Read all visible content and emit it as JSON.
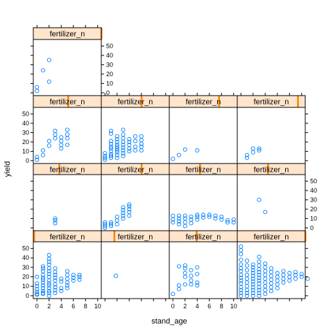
{
  "colors": {
    "strip_bg": "#ffe5cc",
    "strip_indicator": "#ff8000",
    "point": "#0080ff",
    "border": "#000000"
  },
  "chart_data": {
    "type": "scatter",
    "layout": "lattice trellis, conditioned by shingle fertilizer_n, 4 columns x 4 rows, filled from bottom-left",
    "title": "",
    "xlabel": "stand_age",
    "ylabel": "yield",
    "xlim": [
      -0.6,
      10.6
    ],
    "ylim": [
      -3,
      57
    ],
    "x_ticks": [
      0,
      2,
      4,
      6,
      8,
      10
    ],
    "y_ticks": [
      0,
      10,
      20,
      30,
      40,
      50
    ],
    "panels": [
      {
        "name": "panel-1",
        "strip_label": "fertilizer_n",
        "indicator": [
          0.0,
          0.015
        ],
        "points": [
          [
            0,
            1
          ],
          [
            0,
            2
          ],
          [
            0,
            4
          ],
          [
            0,
            7
          ],
          [
            0,
            10
          ],
          [
            0,
            13
          ],
          [
            0,
            20
          ],
          [
            1,
            2
          ],
          [
            1,
            3
          ],
          [
            1,
            5
          ],
          [
            1,
            8
          ],
          [
            1,
            11
          ],
          [
            1,
            14
          ],
          [
            1,
            17
          ],
          [
            1,
            19
          ],
          [
            1,
            22
          ],
          [
            1,
            26
          ],
          [
            1,
            29
          ],
          [
            1,
            31
          ],
          [
            2,
            0
          ],
          [
            2,
            3
          ],
          [
            2,
            5
          ],
          [
            2,
            8
          ],
          [
            2,
            11
          ],
          [
            2,
            13
          ],
          [
            2,
            16
          ],
          [
            2,
            20
          ],
          [
            2,
            23
          ],
          [
            2,
            26
          ],
          [
            2,
            29
          ],
          [
            2,
            33
          ],
          [
            2,
            36
          ],
          [
            2,
            39
          ],
          [
            2,
            43
          ],
          [
            3,
            3
          ],
          [
            3,
            6
          ],
          [
            3,
            9
          ],
          [
            3,
            12
          ],
          [
            3,
            16
          ],
          [
            3,
            19
          ],
          [
            3,
            22
          ],
          [
            3,
            25
          ],
          [
            3,
            29
          ],
          [
            4,
            5
          ],
          [
            4,
            8
          ],
          [
            4,
            15
          ],
          [
            4,
            18
          ],
          [
            5,
            8
          ],
          [
            5,
            11
          ],
          [
            5,
            14
          ],
          [
            5,
            18
          ],
          [
            5,
            22
          ],
          [
            5,
            26
          ],
          [
            6,
            16
          ],
          [
            6,
            19
          ],
          [
            6,
            22
          ],
          [
            7,
            17
          ],
          [
            7,
            20
          ],
          [
            7,
            22
          ]
        ]
      },
      {
        "name": "panel-2",
        "strip_label": "fertilizer_n",
        "indicator": [
          0.18,
          0.195
        ],
        "points": [
          [
            1.8,
            21
          ]
        ]
      },
      {
        "name": "panel-3",
        "strip_label": "fertilizer_n",
        "indicator": [
          0.39,
          0.405
        ],
        "points": [
          [
            0,
            2
          ],
          [
            1,
            7
          ],
          [
            1,
            11
          ],
          [
            1,
            31
          ],
          [
            2,
            12
          ],
          [
            2,
            20
          ],
          [
            2,
            24
          ],
          [
            2,
            29
          ],
          [
            2,
            32
          ],
          [
            3,
            12
          ],
          [
            3,
            16
          ],
          [
            3,
            21
          ],
          [
            3,
            27
          ],
          [
            4,
            11
          ],
          [
            4,
            14
          ],
          [
            4,
            23
          ],
          [
            4,
            30
          ]
        ]
      },
      {
        "name": "panel-4",
        "strip_label": "fertilizer_n",
        "indicator": [
          0.99,
          1.0
        ],
        "points": [
          [
            0,
            0
          ],
          [
            0,
            3
          ],
          [
            0,
            6
          ],
          [
            0,
            9
          ],
          [
            0,
            13
          ],
          [
            0,
            16
          ],
          [
            0,
            19
          ],
          [
            0,
            22
          ],
          [
            0,
            26
          ],
          [
            0,
            29
          ],
          [
            0,
            33
          ],
          [
            0,
            38
          ],
          [
            0,
            44
          ],
          [
            0,
            48
          ],
          [
            0,
            52
          ],
          [
            1,
            0
          ],
          [
            1,
            3
          ],
          [
            1,
            6
          ],
          [
            1,
            10
          ],
          [
            1,
            14
          ],
          [
            1,
            18
          ],
          [
            1,
            22
          ],
          [
            1,
            27
          ],
          [
            1,
            32
          ],
          [
            1,
            37
          ],
          [
            2,
            0
          ],
          [
            2,
            3
          ],
          [
            2,
            6
          ],
          [
            2,
            9
          ],
          [
            2,
            12
          ],
          [
            2,
            15
          ],
          [
            2,
            18
          ],
          [
            2,
            21
          ],
          [
            2,
            24
          ],
          [
            2,
            27
          ],
          [
            2,
            30
          ],
          [
            2,
            33
          ],
          [
            3,
            0
          ],
          [
            3,
            3
          ],
          [
            3,
            6
          ],
          [
            3,
            9
          ],
          [
            3,
            13
          ],
          [
            3,
            16
          ],
          [
            3,
            19
          ],
          [
            3,
            22
          ],
          [
            3,
            25
          ],
          [
            3,
            28
          ],
          [
            3,
            32
          ],
          [
            3,
            36
          ],
          [
            3,
            41
          ],
          [
            4,
            2
          ],
          [
            4,
            6
          ],
          [
            4,
            10
          ],
          [
            4,
            14
          ],
          [
            4,
            18
          ],
          [
            4,
            22
          ],
          [
            4,
            26
          ],
          [
            4,
            30
          ],
          [
            4,
            34
          ],
          [
            5,
            5
          ],
          [
            5,
            9
          ],
          [
            5,
            13
          ],
          [
            5,
            17
          ],
          [
            5,
            21
          ],
          [
            5,
            25
          ],
          [
            5,
            29
          ],
          [
            6,
            8
          ],
          [
            6,
            12
          ],
          [
            6,
            16
          ],
          [
            6,
            20
          ],
          [
            6,
            24
          ],
          [
            7,
            14
          ],
          [
            7,
            18
          ],
          [
            7,
            22
          ],
          [
            7,
            26
          ],
          [
            8,
            16
          ],
          [
            8,
            20
          ],
          [
            8,
            24
          ],
          [
            9,
            18
          ],
          [
            9,
            22
          ],
          [
            9,
            25
          ],
          [
            10,
            20
          ],
          [
            10,
            23
          ],
          [
            11,
            18
          ]
        ]
      },
      {
        "name": "panel-5",
        "strip_label": "fertilizer_n",
        "indicator": [
          0.37,
          0.39
        ],
        "points": [
          [
            3,
            5
          ],
          [
            3,
            8
          ],
          [
            3,
            10
          ]
        ]
      },
      {
        "name": "panel-6",
        "strip_label": "fertilizer_n",
        "indicator": [
          0.58,
          0.6
        ],
        "points": [
          [
            0,
            0
          ],
          [
            0,
            2
          ],
          [
            0,
            4
          ],
          [
            0,
            6
          ],
          [
            1,
            2
          ],
          [
            1,
            4
          ],
          [
            1,
            6
          ],
          [
            2,
            4
          ],
          [
            2,
            8
          ],
          [
            2,
            12
          ],
          [
            3,
            10
          ],
          [
            3,
            13
          ],
          [
            3,
            16
          ],
          [
            3,
            19
          ],
          [
            3,
            22
          ],
          [
            4,
            13
          ],
          [
            4,
            17
          ],
          [
            4,
            20
          ],
          [
            4,
            23
          ],
          [
            4,
            25
          ]
        ]
      },
      {
        "name": "panel-7",
        "strip_label": "fertilizer_n",
        "indicator": [
          0.44,
          0.46
        ],
        "points": [
          [
            0,
            6
          ],
          [
            0,
            9
          ],
          [
            0,
            13
          ],
          [
            1,
            4
          ],
          [
            1,
            7
          ],
          [
            1,
            10
          ],
          [
            1,
            13
          ],
          [
            2,
            2
          ],
          [
            2,
            6
          ],
          [
            2,
            10
          ],
          [
            2,
            13
          ],
          [
            3,
            5
          ],
          [
            3,
            9
          ],
          [
            3,
            12
          ],
          [
            4,
            9
          ],
          [
            4,
            12
          ],
          [
            4,
            14
          ],
          [
            5,
            11
          ],
          [
            5,
            14
          ],
          [
            6,
            12
          ],
          [
            6,
            14
          ],
          [
            7,
            10
          ],
          [
            7,
            13
          ],
          [
            8,
            9
          ],
          [
            8,
            12
          ],
          [
            9,
            6
          ],
          [
            9,
            8
          ],
          [
            10,
            6
          ],
          [
            10,
            9
          ]
        ]
      },
      {
        "name": "panel-8",
        "strip_label": "fertilizer_n",
        "indicator": [
          0.44,
          0.46
        ],
        "points": [
          [
            3,
            30
          ],
          [
            4,
            17
          ]
        ]
      },
      {
        "name": "panel-9",
        "strip_label": "fertilizer_n",
        "indicator": [
          0.5,
          0.52
        ],
        "points": [
          [
            0,
            1
          ],
          [
            0,
            4
          ],
          [
            1,
            6
          ],
          [
            1,
            11
          ],
          [
            2,
            16
          ],
          [
            2,
            21
          ],
          [
            3,
            24
          ],
          [
            3,
            28
          ],
          [
            3,
            32
          ],
          [
            4,
            13
          ],
          [
            4,
            17
          ],
          [
            4,
            21
          ],
          [
            4,
            25
          ],
          [
            5,
            17
          ],
          [
            5,
            24
          ],
          [
            5,
            28
          ],
          [
            5,
            33
          ]
        ]
      },
      {
        "name": "panel-10",
        "strip_label": "fertilizer_n",
        "indicator": [
          0.58,
          0.6
        ],
        "points": [
          [
            0,
            1
          ],
          [
            0,
            3
          ],
          [
            0,
            5
          ],
          [
            0,
            8
          ],
          [
            1,
            3
          ],
          [
            1,
            5
          ],
          [
            1,
            7
          ],
          [
            1,
            10
          ],
          [
            1,
            13
          ],
          [
            1,
            15
          ],
          [
            1,
            18
          ],
          [
            1,
            21
          ],
          [
            1,
            29
          ],
          [
            1,
            32
          ],
          [
            2,
            3
          ],
          [
            2,
            6
          ],
          [
            2,
            9
          ],
          [
            2,
            11
          ],
          [
            2,
            13
          ],
          [
            2,
            15
          ],
          [
            2,
            17
          ],
          [
            2,
            20
          ],
          [
            2,
            23
          ],
          [
            2,
            26
          ],
          [
            3,
            5
          ],
          [
            3,
            8
          ],
          [
            3,
            11
          ],
          [
            3,
            14
          ],
          [
            3,
            17
          ],
          [
            3,
            20
          ],
          [
            3,
            24
          ],
          [
            3,
            28
          ],
          [
            3,
            33
          ],
          [
            4,
            10
          ],
          [
            4,
            13
          ],
          [
            4,
            17
          ],
          [
            4,
            20
          ],
          [
            4,
            23
          ],
          [
            5,
            11
          ],
          [
            5,
            15
          ],
          [
            5,
            21
          ],
          [
            5,
            26
          ],
          [
            6,
            11
          ],
          [
            6,
            15
          ],
          [
            6,
            18
          ],
          [
            6,
            22
          ],
          [
            6,
            26
          ]
        ]
      },
      {
        "name": "panel-11",
        "strip_label": "fertilizer_n",
        "indicator": [
          0.72,
          0.74
        ],
        "points": [
          [
            0,
            2
          ],
          [
            1,
            6
          ],
          [
            2,
            12
          ],
          [
            4,
            11
          ]
        ]
      },
      {
        "name": "panel-12",
        "strip_label": "fertilizer_n",
        "indicator": [
          0.88,
          0.9
        ],
        "points": [
          [
            1,
            3
          ],
          [
            1,
            6
          ],
          [
            2,
            9
          ],
          [
            2,
            13
          ],
          [
            3,
            11
          ],
          [
            3,
            13
          ]
        ]
      },
      {
        "name": "panel-13",
        "strip_label": "fertilizer_n",
        "indicator": [
          0.99,
          1.0
        ],
        "points": [
          [
            0,
            2
          ],
          [
            0,
            6
          ],
          [
            1,
            24
          ],
          [
            2,
            35
          ],
          [
            2,
            12
          ]
        ]
      }
    ]
  }
}
